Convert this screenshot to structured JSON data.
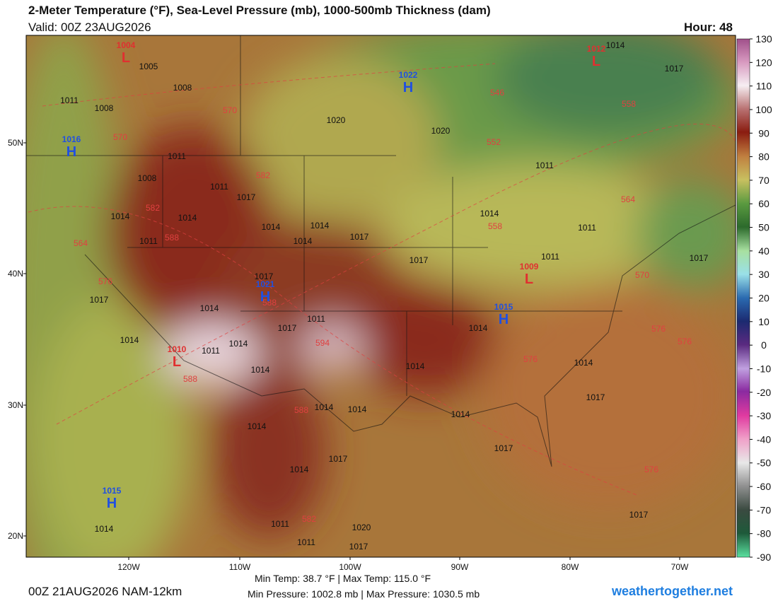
{
  "header": {
    "title": "2-Meter Temperature (°F), Sea-Level Pressure (mb), 1000-500mb Thickness (dam)",
    "valid": "Valid: 00Z 23AUG2026",
    "hour": "Hour: 48"
  },
  "latitude_labels": [
    "50N",
    "40N",
    "30N",
    "20N"
  ],
  "longitude_labels": [
    "120W",
    "110W",
    "100W",
    "90W",
    "80W",
    "70W"
  ],
  "pressure_centers": [
    {
      "letter": "L",
      "value": 1004
    },
    {
      "letter": "H",
      "value": 1022
    },
    {
      "letter": "L",
      "value": 1012
    },
    {
      "letter": "H",
      "value": 1016
    },
    {
      "letter": "H",
      "value": 1021
    },
    {
      "letter": "L",
      "value": 1009
    },
    {
      "letter": "H",
      "value": 1015
    },
    {
      "letter": "L",
      "value": 1010
    },
    {
      "letter": "H",
      "value": 1015
    }
  ],
  "isobar_labels": [
    1005,
    1008,
    1011,
    1008,
    1020,
    1020,
    1011,
    1008,
    1011,
    1017,
    1014,
    1014,
    1014,
    1014,
    1011,
    1014,
    1017,
    1017,
    1014,
    1011,
    1011,
    1011,
    1017,
    1017,
    1014,
    1017,
    1014,
    1017,
    1011,
    1017,
    1014,
    1011,
    1014,
    1014,
    1014,
    1014,
    1014,
    1017,
    1014,
    1014,
    1014,
    1014,
    1017,
    1014,
    1017,
    1011,
    1020,
    1017,
    1017,
    1014,
    1011
  ],
  "thickness_labels": [
    570,
    570,
    552,
    546,
    558,
    582,
    582,
    588,
    564,
    558,
    564,
    570,
    576,
    576,
    576,
    576,
    576,
    582,
    588,
    588,
    594,
    588
  ],
  "colorbar": {
    "ticks": [
      130,
      120,
      110,
      100,
      90,
      80,
      70,
      60,
      50,
      40,
      30,
      20,
      10,
      0,
      -10,
      -20,
      -30,
      -40,
      -50,
      -60,
      -70,
      -80,
      -90
    ]
  },
  "footer": {
    "run": "00Z 21AUG2026 NAM-12km",
    "temp_range": "Min Temp: 38.7 °F | Max Temp: 115.0 °F",
    "pressure_range": "Min Pressure: 1002.8 mb | Max Pressure: 1030.5 mb",
    "site": "weathertogether.net"
  }
}
